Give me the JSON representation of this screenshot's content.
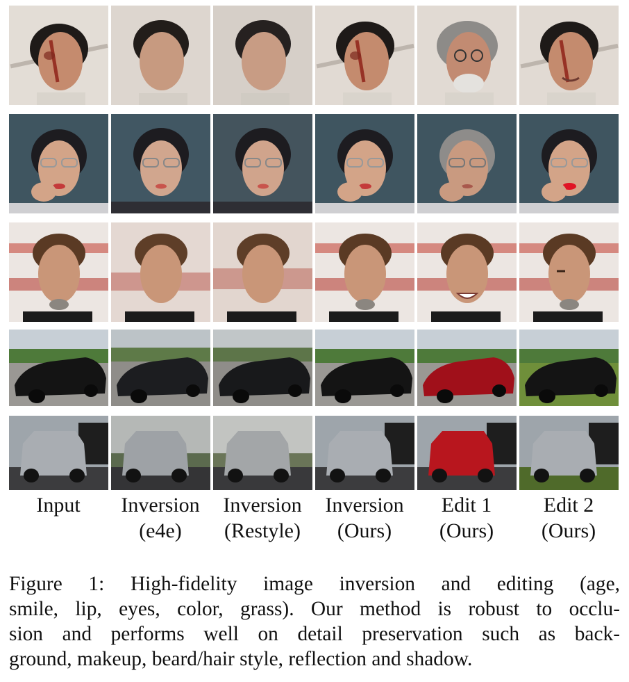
{
  "figure": {
    "columns": [
      {
        "line1": "Input",
        "line2": ""
      },
      {
        "line1": "Inversion",
        "line2": "(e4e)"
      },
      {
        "line1": "Inversion",
        "line2": "(Restyle)"
      },
      {
        "line1": "Inversion",
        "line2": "(Ours)"
      },
      {
        "line1": "Edit 1",
        "line2": "(Ours)"
      },
      {
        "line1": "Edit 2",
        "line2": "(Ours)"
      }
    ],
    "caption_lines": [
      "Figure 1: High-fidelity image inversion and editing (age,",
      "smile, lip, eyes, color, grass). Our method is robust to occlu-",
      "sion and performs well on detail preservation such as back-",
      "ground, makeup, beard/hair style, reflection and shadow."
    ]
  },
  "colors": {
    "skin": "#c99678",
    "hair_dark": "#2a2420",
    "hair_brown": "#5a3a24",
    "car_black": "#141414",
    "car_red": "#a0101a",
    "suv_silver": "#a9adb2",
    "grass": "#6f8f3a"
  }
}
